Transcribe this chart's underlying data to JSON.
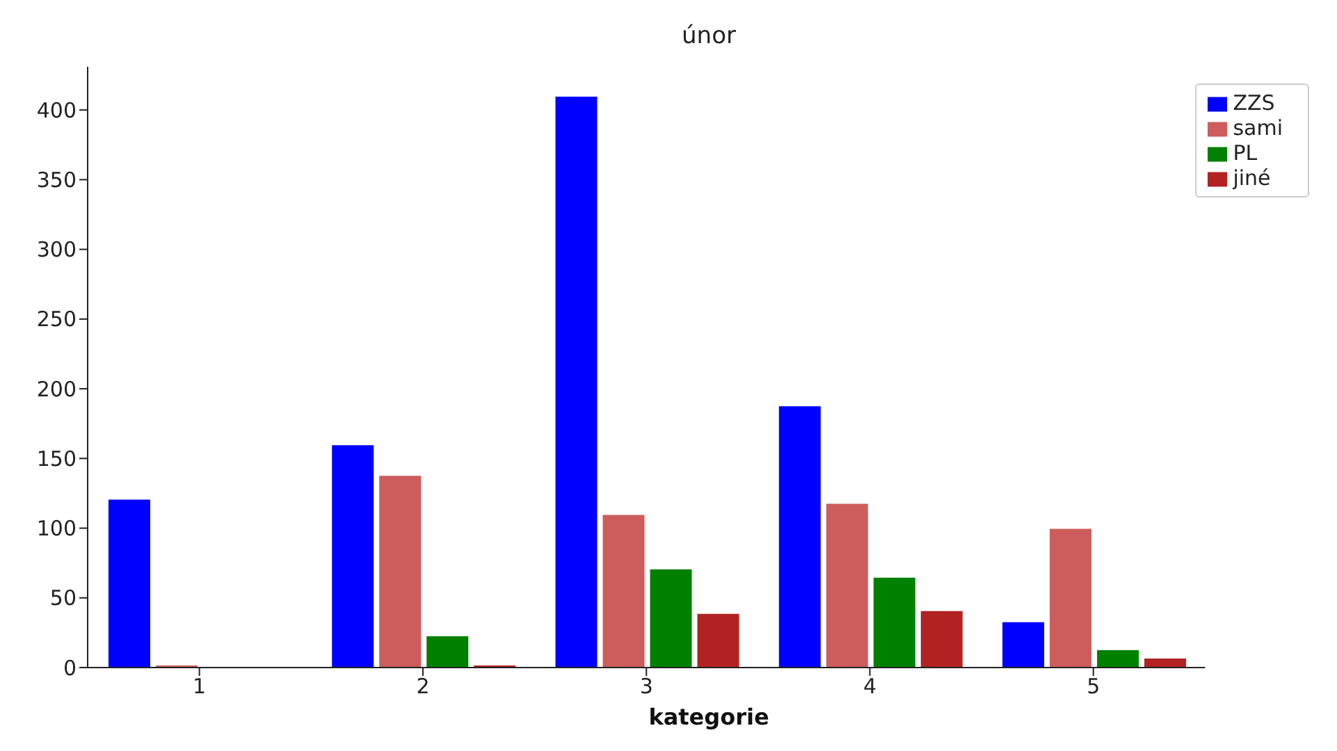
{
  "chart_data": {
    "type": "bar",
    "title": "únor",
    "xlabel": "kategorie",
    "categories": [
      "1",
      "2",
      "3",
      "4",
      "5"
    ],
    "series": [
      {
        "name": "ZZS",
        "color": "#0000ff",
        "values": [
          121,
          160,
          410,
          188,
          33
        ]
      },
      {
        "name": "sami",
        "color": "#cd5c5c",
        "values": [
          2,
          138,
          110,
          118,
          100
        ]
      },
      {
        "name": "PL",
        "color": "#008000",
        "values": [
          0,
          23,
          71,
          65,
          13
        ]
      },
      {
        "name": "jiné",
        "color": "#b22222",
        "values": [
          0,
          2,
          39,
          41,
          7
        ]
      }
    ],
    "ylim": [
      0,
      431
    ],
    "yticks": [
      0,
      50,
      100,
      150,
      200,
      250,
      300,
      350,
      400
    ],
    "grid": false,
    "legend": "top right"
  }
}
